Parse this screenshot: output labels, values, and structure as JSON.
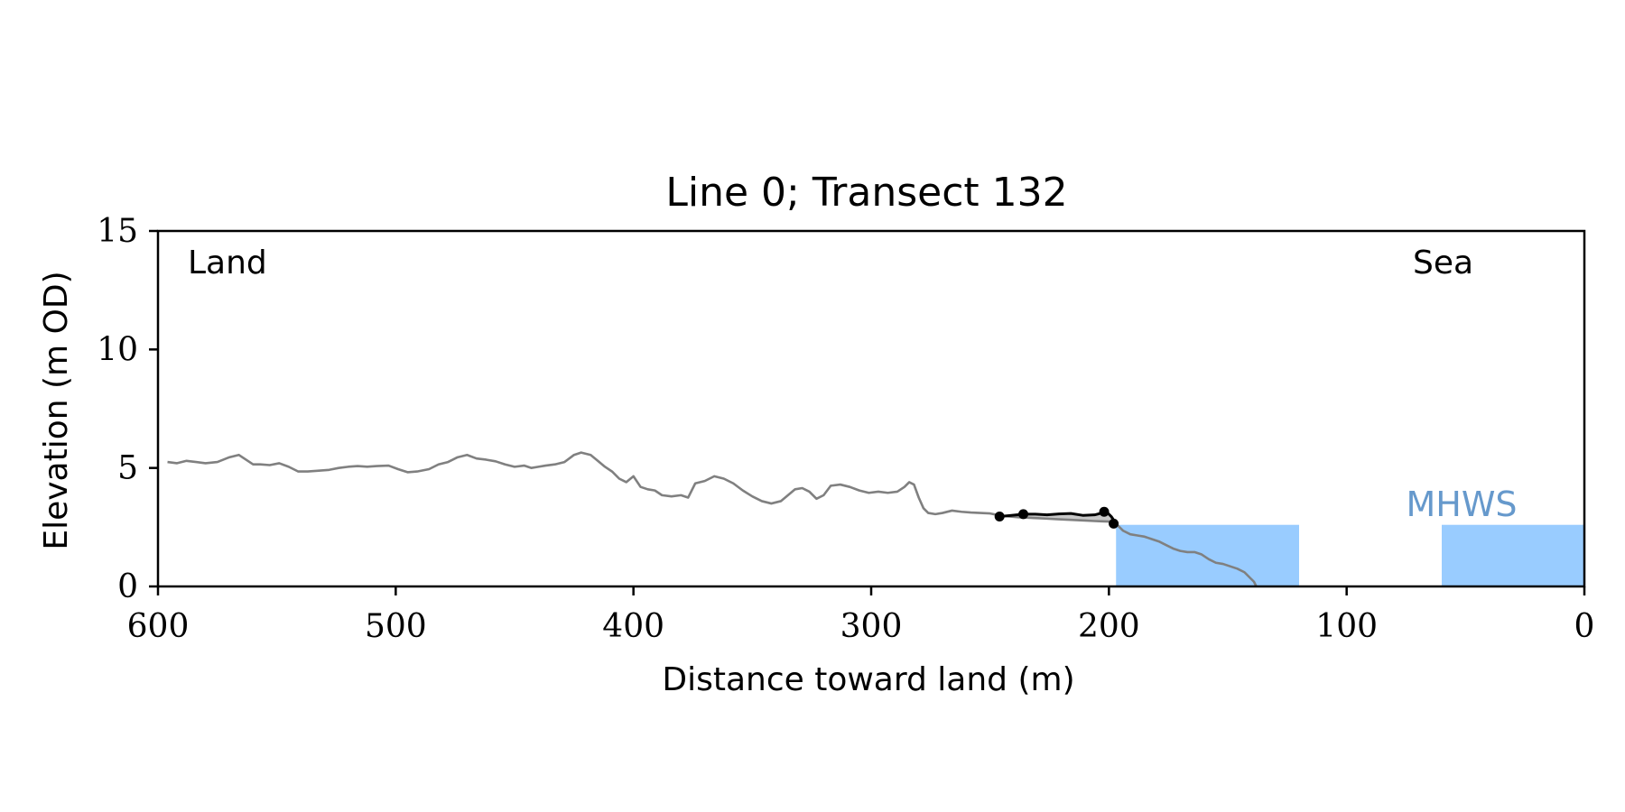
{
  "chart_data": {
    "type": "line",
    "title": "Line 0; Transect 132",
    "xlabel": "Distance toward land (m)",
    "ylabel": "Elevation (m OD)",
    "xlim": [
      600,
      0
    ],
    "ylim": [
      0,
      15
    ],
    "x_ticks": [
      600,
      500,
      400,
      300,
      200,
      100,
      0
    ],
    "y_ticks": [
      0,
      5,
      10,
      15
    ],
    "grid": false,
    "annotations": {
      "land": "Land",
      "sea": "Sea",
      "mhws_label": "MHWS"
    },
    "colors": {
      "profile": "#808080",
      "feature": "#000000",
      "water": "#99ccff",
      "mhws_text": "#6699cc",
      "feature_fill": "#c8c8c8"
    },
    "mhws_level": 2.6,
    "water_regions": [
      {
        "x_from": 197,
        "x_to": 120
      },
      {
        "x_from": 60,
        "x_to": 0
      }
    ],
    "series": [
      {
        "role": "profile",
        "x": [
          596,
          592,
          588,
          584,
          580,
          575,
          570,
          566,
          563,
          560,
          557,
          553,
          549,
          545,
          541,
          537,
          533,
          528,
          524,
          520,
          516,
          512,
          508,
          503,
          499,
          495,
          491,
          486,
          482,
          478,
          474,
          470,
          466,
          462,
          458,
          454,
          450,
          446,
          443,
          440,
          437,
          433,
          429,
          425,
          422,
          418,
          415,
          412,
          409,
          406,
          403,
          400,
          397,
          394,
          391,
          388,
          384,
          380,
          377,
          374,
          370,
          366,
          362,
          358,
          354,
          350,
          346,
          342,
          338,
          335,
          332,
          329,
          326,
          323,
          320,
          317,
          313,
          309,
          305,
          301,
          297,
          293,
          289,
          286,
          284,
          282,
          280,
          278,
          276,
          273,
          270,
          266,
          262,
          258,
          254,
          250,
          246,
          242,
          238,
          234,
          230,
          226,
          222,
          218,
          214,
          210,
          206,
          203,
          200,
          198,
          196,
          194,
          191,
          188,
          185,
          182,
          179,
          176,
          173,
          170,
          167,
          164,
          161,
          158,
          155,
          152,
          149,
          146,
          143,
          141,
          139,
          138
        ],
        "y": [
          5.25,
          5.2,
          5.3,
          5.25,
          5.2,
          5.25,
          5.45,
          5.55,
          5.35,
          5.15,
          5.15,
          5.12,
          5.2,
          5.05,
          4.85,
          4.85,
          4.88,
          4.92,
          5.0,
          5.05,
          5.08,
          5.05,
          5.08,
          5.1,
          4.95,
          4.82,
          4.85,
          4.95,
          5.15,
          5.25,
          5.45,
          5.55,
          5.4,
          5.35,
          5.28,
          5.15,
          5.05,
          5.1,
          5.0,
          5.05,
          5.1,
          5.15,
          5.25,
          5.55,
          5.65,
          5.55,
          5.3,
          5.05,
          4.85,
          4.55,
          4.4,
          4.65,
          4.2,
          4.1,
          4.05,
          3.85,
          3.8,
          3.85,
          3.75,
          4.35,
          4.45,
          4.65,
          4.55,
          4.35,
          4.05,
          3.8,
          3.6,
          3.5,
          3.6,
          3.85,
          4.1,
          4.15,
          4.0,
          3.7,
          3.85,
          4.25,
          4.3,
          4.2,
          4.05,
          3.95,
          4.0,
          3.95,
          4.0,
          4.2,
          4.4,
          4.3,
          3.75,
          3.3,
          3.1,
          3.05,
          3.1,
          3.2,
          3.15,
          3.12,
          3.1,
          3.08,
          3.0,
          2.95,
          2.92,
          2.9,
          2.88,
          2.86,
          2.84,
          2.82,
          2.8,
          2.78,
          2.76,
          2.75,
          2.74,
          2.72,
          2.55,
          2.35,
          2.2,
          2.15,
          2.1,
          2.0,
          1.9,
          1.75,
          1.6,
          1.5,
          1.45,
          1.45,
          1.35,
          1.15,
          1.0,
          0.95,
          0.85,
          0.75,
          0.6,
          0.4,
          0.2,
          0.0
        ]
      },
      {
        "role": "feature",
        "x": [
          246,
          241,
          236,
          231,
          226,
          221,
          216,
          211,
          206,
          201,
          199,
          197
        ],
        "y": [
          2.95,
          3.0,
          3.05,
          3.05,
          3.02,
          3.06,
          3.08,
          3.0,
          3.02,
          3.15,
          2.95,
          2.65
        ],
        "points_x": [
          246,
          236,
          202,
          198
        ],
        "points_y": [
          2.95,
          3.05,
          3.15,
          2.65
        ]
      }
    ]
  }
}
